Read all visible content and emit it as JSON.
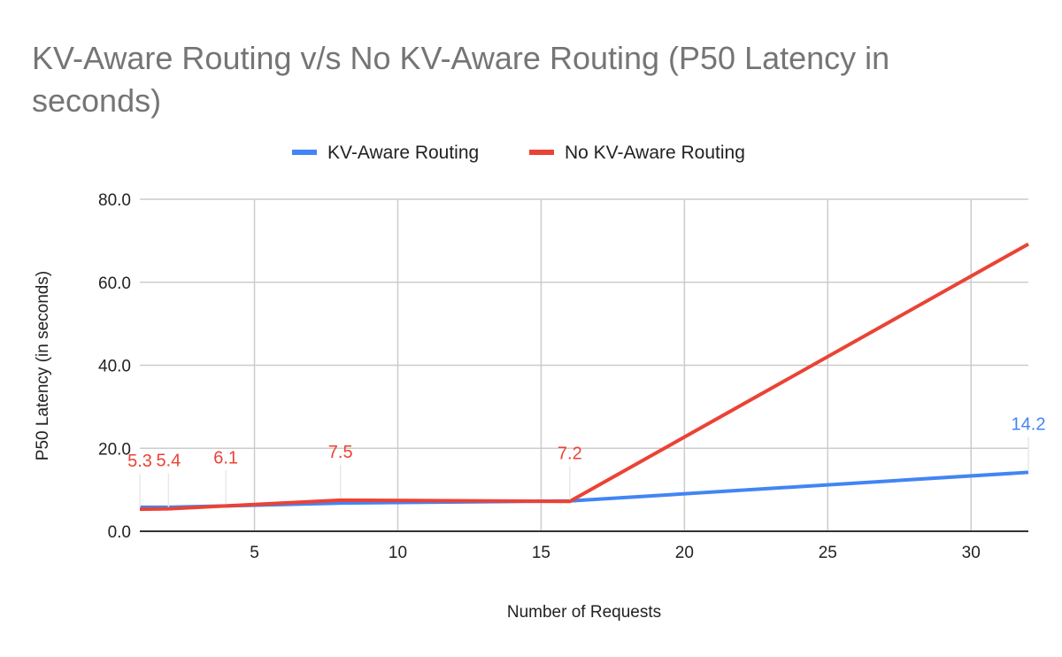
{
  "chart_data": {
    "type": "line",
    "title": "KV-Aware Routing v/s No KV-Aware Routing  (P50 Latency in seconds)",
    "xlabel": "Number of Requests",
    "ylabel": "P50 Latency (in seconds)",
    "x": [
      1,
      2,
      4,
      8,
      16,
      32
    ],
    "xlim": [
      1,
      32
    ],
    "ylim": [
      0,
      80
    ],
    "xticks": [
      5,
      10,
      15,
      20,
      25,
      30
    ],
    "xtick_labels": [
      "5",
      "10",
      "15",
      "20",
      "25",
      "30"
    ],
    "yticks": [
      0,
      20,
      40,
      60,
      80
    ],
    "ytick_labels": [
      "0.0",
      "20.0",
      "40.0",
      "60.0",
      "80.0"
    ],
    "grid": true,
    "legend": "top",
    "series": [
      {
        "name": "KV-Aware Routing",
        "color": "#4285f4",
        "values": [
          5.8,
          5.8,
          6.1,
          6.8,
          7.3,
          14.2
        ],
        "data_labels": [
          "",
          "",
          "",
          "",
          "",
          "14.2"
        ]
      },
      {
        "name": "No KV-Aware Routing",
        "color": "#ea4335",
        "values": [
          5.3,
          5.4,
          6.1,
          7.5,
          7.2,
          69.2
        ],
        "data_labels": [
          "5.3",
          "5.4",
          "6.1",
          "7.5",
          "7.2",
          ""
        ]
      }
    ]
  }
}
